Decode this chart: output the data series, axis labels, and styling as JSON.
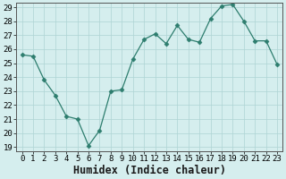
{
  "xlabel": "Humidex (Indice chaleur)",
  "x": [
    0,
    1,
    2,
    3,
    4,
    5,
    6,
    7,
    8,
    9,
    10,
    11,
    12,
    13,
    14,
    15,
    16,
    17,
    18,
    19,
    20,
    21,
    22,
    23
  ],
  "y": [
    25.6,
    25.5,
    23.8,
    22.7,
    21.2,
    21.0,
    19.1,
    20.2,
    23.0,
    23.1,
    25.3,
    26.7,
    27.1,
    26.4,
    27.7,
    26.7,
    26.5,
    28.2,
    29.1,
    29.2,
    28.0,
    26.6,
    26.6,
    24.9
  ],
  "ylim_min": 19,
  "ylim_max": 29,
  "xlim_min": -0.5,
  "xlim_max": 23.5,
  "yticks": [
    19,
    20,
    21,
    22,
    23,
    24,
    25,
    26,
    27,
    28,
    29
  ],
  "xticks": [
    0,
    1,
    2,
    3,
    4,
    5,
    6,
    7,
    8,
    9,
    10,
    11,
    12,
    13,
    14,
    15,
    16,
    17,
    18,
    19,
    20,
    21,
    22,
    23
  ],
  "line_color": "#2d7d6e",
  "marker": "D",
  "marker_size": 2.5,
  "bg_color": "#d5eeee",
  "grid_color": "#aed4d4",
  "tick_fontsize": 6.5,
  "xlabel_fontsize": 8.5,
  "spine_color": "#555555"
}
